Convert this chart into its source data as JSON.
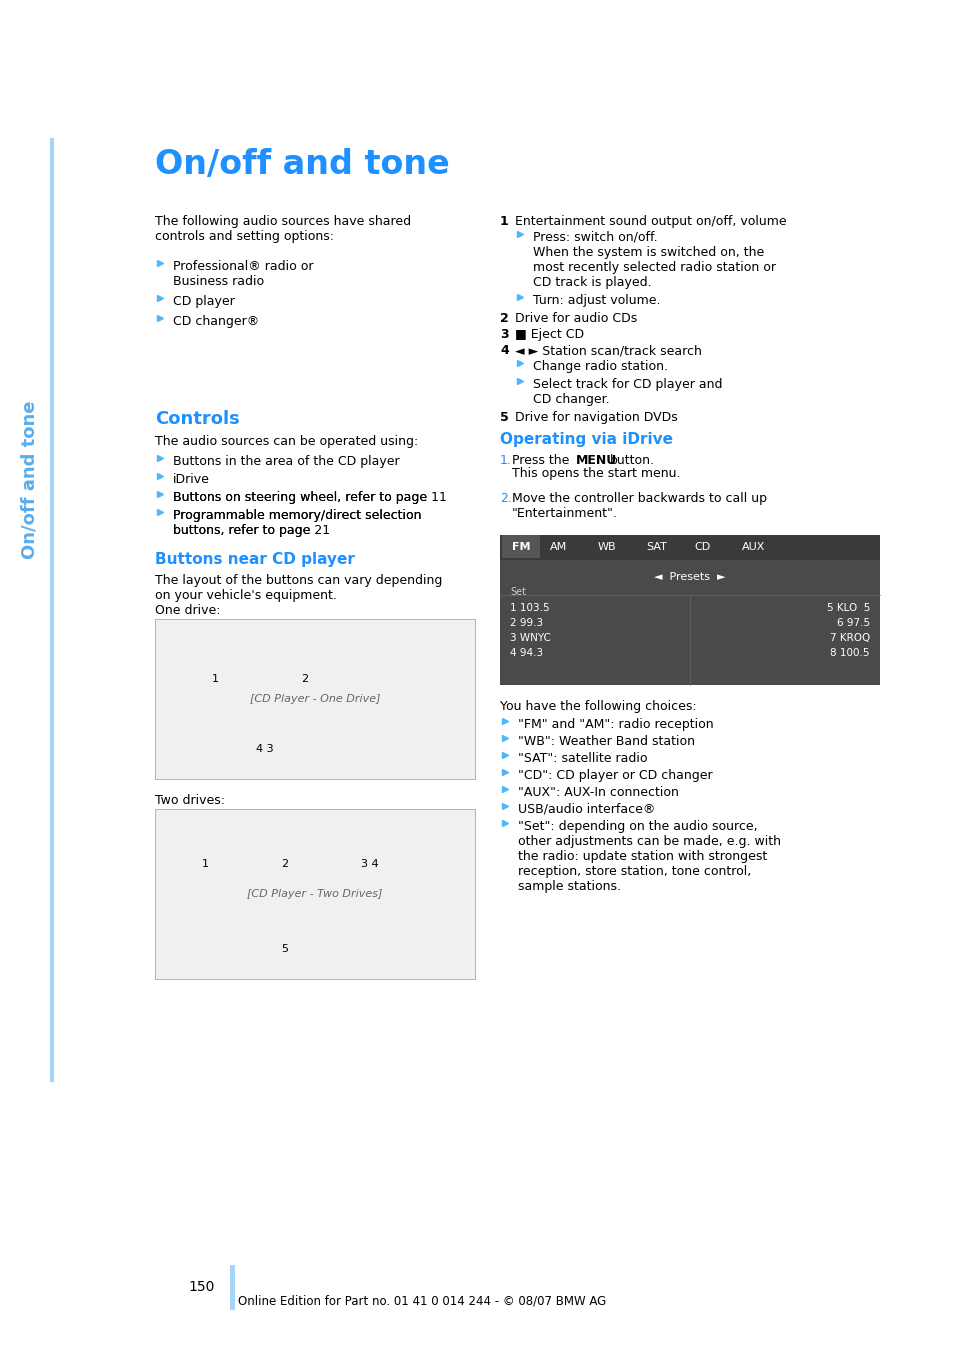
{
  "bg_color": "#ffffff",
  "page_number": "150",
  "footer_text": "Online Edition for Part no. 01 41 0 014 244 - © 08/07 BMW AG",
  "sidebar_text": "On/off and tone",
  "sidebar_color": "#5badec",
  "sidebar_line_color": "#a8d4f5",
  "title": "On/off and tone",
  "title_color": "#1e90ff",
  "section1_color": "#1e90ff",
  "section2_color": "#1e90ff",
  "section3_color": "#1e90ff",
  "section4_color": "#1e90ff",
  "text_color": "#000000",
  "arrow_color": "#4db8ff",
  "content": {
    "intro_text": "The following audio sources have shared\ncontrols and setting options:",
    "bullet_items_left": [
      "Professional® radio or\nBusiness radio",
      "CD player",
      "CD changer®"
    ],
    "numbered_items_right": [
      {
        "num": "1",
        "text": "Entertainment sound output on/off, volume",
        "sub_items": [
          "Press: switch on/off.\nWhen the system is switched on, the\nmost recently selected radio station or\nCD track is played.",
          "Turn: adjust volume."
        ]
      },
      {
        "num": "2",
        "text": "Drive for audio CDs",
        "sub_items": []
      },
      {
        "num": "3",
        "text": "■ Eject CD",
        "sub_items": []
      },
      {
        "num": "4",
        "text": "◄ ► Station scan/track search",
        "sub_items": [
          "Change radio station.",
          "Select track for CD player and\nCD changer."
        ]
      },
      {
        "num": "5",
        "text": "Drive for navigation DVDs",
        "sub_items": []
      }
    ],
    "controls_section": "Controls",
    "controls_intro": "The audio sources can be operated using:",
    "controls_bullets": [
      "Buttons in the area of the CD player",
      "iDrive",
      "Buttons on steering wheel, refer to page 11",
      "Programmable memory/direct selection\nbuttons, refer to page 21"
    ],
    "buttons_near_cd": "Buttons near CD player",
    "buttons_near_text": "The layout of the buttons can vary depending\non your vehicle's equipment.",
    "one_drive_label": "One drive:",
    "two_drives_label": "Two drives:",
    "operating_idrive_section": "Operating via iDrive",
    "idrive_steps": [
      "Press the MENU button.\nThis opens the start menu.",
      "Move the controller backwards to call up\n\"Entertainment\"."
    ],
    "choices_intro": "You have the following choices:",
    "choices_bullets": [
      "\"FM\" and \"AM\": radio reception",
      "\"WB\": Weather Band station",
      "\"SAT\": satellite radio",
      "\"CD\": CD player or CD changer",
      "\"AUX\": AUX-In connection",
      "USB/audio interface®",
      "\"Set\": depending on the audio source,\nother adjustments can be made, e.g. with\nthe radio: update station with strongest\nreception, store station, tone control,\nsample stations."
    ]
  }
}
